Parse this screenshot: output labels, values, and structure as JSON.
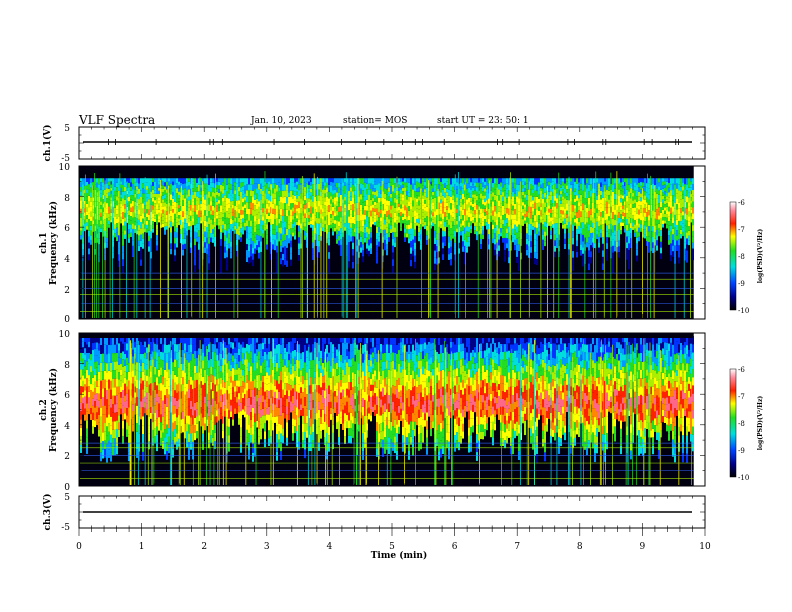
{
  "header": {
    "title": "VLF Spectra",
    "date": "Jan. 10, 2023",
    "station": "station= MOS",
    "start": "start  UT  =   23: 50: 1"
  },
  "chart_data": [
    {
      "type": "line",
      "name": "ch1-voltage",
      "ylabel": "ch.1(V)",
      "ylim": [
        -5,
        5
      ],
      "yticks": [
        "5",
        "-5"
      ],
      "x": [
        0,
        9.82
      ],
      "y": [
        0,
        0
      ]
    },
    {
      "type": "heatmap",
      "name": "ch1-spectrogram",
      "ylabel": "ch.1\nFrequency (kHz)",
      "ylabel_lines": [
        "ch.1",
        "Frequency (kHz)"
      ],
      "ylim": [
        0,
        10
      ],
      "yticks": [
        "0",
        "2",
        "4",
        "6",
        "8",
        "10"
      ],
      "x_extent_min": 9.82,
      "band_khz": [
        3,
        9.2
      ],
      "noise_lines_khz": [
        0.5,
        1.0,
        1.6,
        2.0,
        2.6,
        3.0
      ],
      "colorbar": {
        "label": "log(PSD)(V²/Hz)",
        "range": [
          -10,
          -6
        ],
        "ticks": [
          "-6",
          "-7",
          "-8",
          "-9",
          "-10"
        ]
      }
    },
    {
      "type": "heatmap",
      "name": "ch2-spectrogram",
      "ylabel": "ch.2\nFrequency (kHz)",
      "ylabel_lines": [
        "ch.2",
        "Frequency (kHz)"
      ],
      "ylim": [
        0,
        10
      ],
      "yticks": [
        "0",
        "2",
        "4",
        "6",
        "8",
        "10"
      ],
      "x_extent_min": 9.82,
      "band_khz": [
        1.5,
        9.8
      ],
      "noise_lines_khz": [
        0.5,
        1.0,
        1.5,
        2.0,
        2.5,
        2.8
      ],
      "colorbar": {
        "label": "log(PSD)(V²/Hz)",
        "range": [
          -10,
          -6
        ],
        "ticks": [
          "-6",
          "-7",
          "-8",
          "-9",
          "-10"
        ]
      }
    },
    {
      "type": "line",
      "name": "ch3-voltage",
      "ylabel": "ch.3(V)",
      "ylim": [
        -5,
        5
      ],
      "yticks": [
        "5",
        "-5"
      ],
      "x": [
        0,
        9.82
      ],
      "y": [
        0,
        0
      ]
    }
  ],
  "xaxis": {
    "label": "Time (min)",
    "range": [
      0,
      10
    ],
    "ticks": [
      "0",
      "1",
      "2",
      "3",
      "4",
      "5",
      "6",
      "7",
      "8",
      "9",
      "10"
    ]
  }
}
